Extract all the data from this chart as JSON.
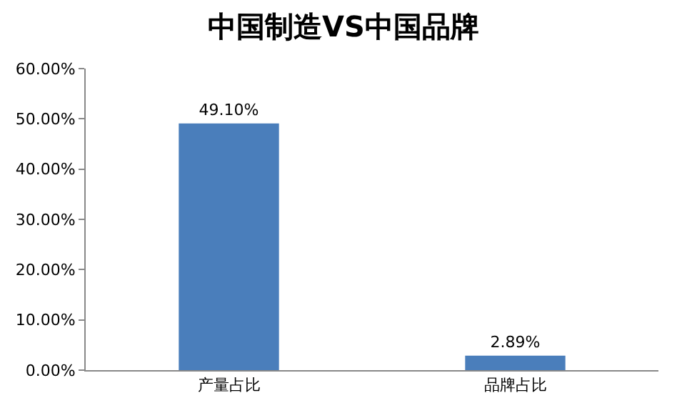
{
  "chart_data": {
    "type": "bar",
    "title": "中国制造VS中国品牌",
    "categories": [
      "产量占比",
      "品牌占比"
    ],
    "values": [
      49.1,
      2.89
    ],
    "value_labels": [
      "49.10%",
      "2.89%"
    ],
    "color": "#4a7ebb",
    "ylim": [
      0,
      60
    ],
    "yticks": [
      {
        "value": 0,
        "label": "0.00%"
      },
      {
        "value": 10,
        "label": "10.00%"
      },
      {
        "value": 20,
        "label": "20.00%"
      },
      {
        "value": 30,
        "label": "30.00%"
      },
      {
        "value": 40,
        "label": "40.00%"
      },
      {
        "value": 50,
        "label": "50.00%"
      },
      {
        "value": 60,
        "label": "60.00%"
      }
    ]
  }
}
